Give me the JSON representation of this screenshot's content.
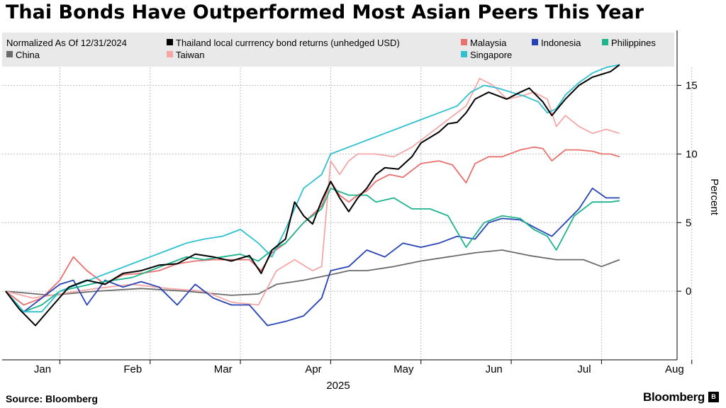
{
  "title": "Thai Bonds Have Outperformed Most Asian Peers This Year",
  "footer": {
    "source": "Source:  Bloomberg",
    "brand": "Bloomberg",
    "brand_mark": "B"
  },
  "chart_data": {
    "type": "line",
    "title": "Thai Bonds Have Outperformed Most Asian Peers This Year",
    "subtitle": "Normalized As Of 12/31/2024",
    "xlabel": "2025",
    "ylabel": "Percent",
    "x_tick_labels": [
      "Jan",
      "Feb",
      "Mar",
      "Apr",
      "May",
      "Jun",
      "Jul",
      "Aug"
    ],
    "y_ticks": [
      0,
      5,
      10,
      15
    ],
    "ylim": [
      -5,
      19
    ],
    "grid": true,
    "legend_position": "top",
    "x_unit": "months since 12/31/2024",
    "series": [
      {
        "name": "Thailand local currrency bond returns (unhedged USD)",
        "color": "#000000",
        "points": [
          [
            0,
            0
          ],
          [
            0.15,
            -1.3
          ],
          [
            0.33,
            -2.5
          ],
          [
            0.5,
            -1.2
          ],
          [
            0.7,
            0.3
          ],
          [
            0.9,
            0.8
          ],
          [
            1.1,
            0.5
          ],
          [
            1.3,
            1.3
          ],
          [
            1.5,
            1.5
          ],
          [
            1.7,
            1.9
          ],
          [
            1.9,
            2.0
          ],
          [
            2.1,
            2.7
          ],
          [
            2.3,
            2.5
          ],
          [
            2.5,
            2.2
          ],
          [
            2.7,
            2.6
          ],
          [
            2.83,
            1.3
          ],
          [
            2.95,
            3.0
          ],
          [
            3.1,
            3.8
          ],
          [
            3.2,
            6.5
          ],
          [
            3.3,
            5.5
          ],
          [
            3.4,
            4.9
          ],
          [
            3.5,
            6.6
          ],
          [
            3.6,
            8.0
          ],
          [
            3.7,
            6.8
          ],
          [
            3.8,
            5.8
          ],
          [
            3.9,
            6.8
          ],
          [
            4.0,
            7.5
          ],
          [
            4.1,
            8.5
          ],
          [
            4.2,
            9.0
          ],
          [
            4.35,
            8.9
          ],
          [
            4.5,
            9.8
          ],
          [
            4.6,
            10.8
          ],
          [
            4.8,
            11.6
          ],
          [
            4.9,
            12.2
          ],
          [
            5.0,
            12.3
          ],
          [
            5.1,
            13.0
          ],
          [
            5.2,
            14.0
          ],
          [
            5.35,
            14.5
          ],
          [
            5.55,
            14.0
          ],
          [
            5.7,
            14.5
          ],
          [
            5.8,
            14.8
          ],
          [
            5.95,
            13.8
          ],
          [
            6.05,
            12.8
          ],
          [
            6.2,
            14.0
          ],
          [
            6.35,
            15.0
          ],
          [
            6.5,
            15.6
          ],
          [
            6.6,
            15.8
          ],
          [
            6.7,
            16.0
          ],
          [
            6.8,
            16.5
          ]
        ]
      },
      {
        "name": "Malaysia",
        "color": "#e8706e",
        "points": [
          [
            0,
            0
          ],
          [
            0.2,
            -1.0
          ],
          [
            0.4,
            -0.5
          ],
          [
            0.6,
            0.8
          ],
          [
            0.75,
            2.5
          ],
          [
            0.9,
            1.5
          ],
          [
            1.1,
            0.5
          ],
          [
            1.3,
            1.2
          ],
          [
            1.5,
            1.3
          ],
          [
            1.7,
            1.5
          ],
          [
            1.9,
            2.0
          ],
          [
            2.1,
            2.2
          ],
          [
            2.3,
            2.3
          ],
          [
            2.5,
            2.3
          ],
          [
            2.7,
            2.3
          ],
          [
            2.83,
            1.5
          ],
          [
            2.95,
            2.8
          ],
          [
            3.1,
            3.5
          ],
          [
            3.3,
            5.0
          ],
          [
            3.5,
            6.2
          ],
          [
            3.6,
            8.0
          ],
          [
            3.7,
            7.0
          ],
          [
            3.8,
            6.5
          ],
          [
            3.9,
            7.0
          ],
          [
            4.0,
            7.3
          ],
          [
            4.1,
            8.0
          ],
          [
            4.25,
            8.5
          ],
          [
            4.4,
            8.3
          ],
          [
            4.6,
            9.3
          ],
          [
            4.8,
            9.5
          ],
          [
            4.95,
            9.2
          ],
          [
            5.1,
            7.9
          ],
          [
            5.2,
            9.3
          ],
          [
            5.35,
            9.8
          ],
          [
            5.5,
            9.8
          ],
          [
            5.7,
            10.3
          ],
          [
            5.85,
            10.5
          ],
          [
            5.95,
            10.4
          ],
          [
            6.05,
            9.5
          ],
          [
            6.2,
            10.3
          ],
          [
            6.35,
            10.3
          ],
          [
            6.5,
            10.2
          ],
          [
            6.6,
            10.0
          ],
          [
            6.7,
            10.0
          ],
          [
            6.8,
            9.8
          ]
        ]
      },
      {
        "name": "Indonesia",
        "color": "#2643b5",
        "points": [
          [
            0,
            0
          ],
          [
            0.2,
            -1.5
          ],
          [
            0.4,
            -0.5
          ],
          [
            0.6,
            0.5
          ],
          [
            0.75,
            0.8
          ],
          [
            0.9,
            -1.0
          ],
          [
            1.1,
            0.8
          ],
          [
            1.3,
            0.3
          ],
          [
            1.5,
            0.7
          ],
          [
            1.7,
            0.3
          ],
          [
            1.9,
            -1.0
          ],
          [
            2.1,
            0.5
          ],
          [
            2.3,
            -0.5
          ],
          [
            2.5,
            -1.0
          ],
          [
            2.7,
            -1.0
          ],
          [
            2.9,
            -2.5
          ],
          [
            3.1,
            -2.2
          ],
          [
            3.3,
            -1.8
          ],
          [
            3.5,
            -0.5
          ],
          [
            3.6,
            1.5
          ],
          [
            3.8,
            1.8
          ],
          [
            4.0,
            3.0
          ],
          [
            4.2,
            2.5
          ],
          [
            4.4,
            3.5
          ],
          [
            4.6,
            3.2
          ],
          [
            4.8,
            3.5
          ],
          [
            5.0,
            4.0
          ],
          [
            5.2,
            3.8
          ],
          [
            5.35,
            5.0
          ],
          [
            5.5,
            5.3
          ],
          [
            5.7,
            5.2
          ],
          [
            5.9,
            4.5
          ],
          [
            6.05,
            4.0
          ],
          [
            6.2,
            5.0
          ],
          [
            6.35,
            6.0
          ],
          [
            6.5,
            7.5
          ],
          [
            6.65,
            6.8
          ],
          [
            6.8,
            6.8
          ]
        ]
      },
      {
        "name": "Philippines",
        "color": "#1fb38e",
        "points": [
          [
            0,
            0
          ],
          [
            0.2,
            -1.5
          ],
          [
            0.4,
            -1.0
          ],
          [
            0.6,
            0.0
          ],
          [
            0.8,
            0.3
          ],
          [
            1.0,
            0.6
          ],
          [
            1.2,
            0.8
          ],
          [
            1.4,
            1.0
          ],
          [
            1.6,
            1.5
          ],
          [
            1.8,
            2.0
          ],
          [
            2.0,
            2.5
          ],
          [
            2.2,
            2.3
          ],
          [
            2.4,
            2.5
          ],
          [
            2.6,
            2.7
          ],
          [
            2.8,
            2.2
          ],
          [
            2.95,
            3.0
          ],
          [
            3.1,
            3.5
          ],
          [
            3.3,
            5.0
          ],
          [
            3.5,
            6.0
          ],
          [
            3.6,
            7.5
          ],
          [
            3.8,
            7.0
          ],
          [
            4.0,
            7.0
          ],
          [
            4.1,
            6.5
          ],
          [
            4.3,
            6.8
          ],
          [
            4.5,
            6.0
          ],
          [
            4.7,
            6.0
          ],
          [
            4.9,
            5.5
          ],
          [
            5.1,
            3.2
          ],
          [
            5.3,
            5.0
          ],
          [
            5.5,
            5.5
          ],
          [
            5.7,
            5.3
          ],
          [
            5.85,
            4.5
          ],
          [
            6.0,
            4.0
          ],
          [
            6.1,
            3.0
          ],
          [
            6.3,
            5.5
          ],
          [
            6.5,
            6.5
          ],
          [
            6.7,
            6.5
          ],
          [
            6.8,
            6.6
          ]
        ]
      },
      {
        "name": "China",
        "color": "#6b6b6b",
        "points": [
          [
            0,
            0
          ],
          [
            0.5,
            -0.3
          ],
          [
            1.0,
            0.0
          ],
          [
            1.5,
            0.2
          ],
          [
            2.0,
            0.0
          ],
          [
            2.5,
            -0.3
          ],
          [
            2.8,
            -0.2
          ],
          [
            3.0,
            0.5
          ],
          [
            3.3,
            0.8
          ],
          [
            3.6,
            1.2
          ],
          [
            3.8,
            1.5
          ],
          [
            4.0,
            1.5
          ],
          [
            4.3,
            1.8
          ],
          [
            4.6,
            2.2
          ],
          [
            4.9,
            2.5
          ],
          [
            5.2,
            2.8
          ],
          [
            5.5,
            3.0
          ],
          [
            5.8,
            2.6
          ],
          [
            6.1,
            2.3
          ],
          [
            6.4,
            2.3
          ],
          [
            6.6,
            1.8
          ],
          [
            6.8,
            2.3
          ]
        ]
      },
      {
        "name": "Taiwan",
        "color": "#f4a7a6",
        "points": [
          [
            0,
            0
          ],
          [
            0.3,
            -0.5
          ],
          [
            0.6,
            -0.2
          ],
          [
            1.0,
            0.2
          ],
          [
            1.4,
            0.5
          ],
          [
            1.8,
            0.2
          ],
          [
            2.2,
            0.0
          ],
          [
            2.5,
            -0.8
          ],
          [
            2.8,
            -1.0
          ],
          [
            3.0,
            1.5
          ],
          [
            3.2,
            2.3
          ],
          [
            3.4,
            1.5
          ],
          [
            3.5,
            1.8
          ],
          [
            3.6,
            9.5
          ],
          [
            3.7,
            8.5
          ],
          [
            3.8,
            9.5
          ],
          [
            3.9,
            10.0
          ],
          [
            4.1,
            10.0
          ],
          [
            4.3,
            9.8
          ],
          [
            4.5,
            10.5
          ],
          [
            4.7,
            11.5
          ],
          [
            4.9,
            12.5
          ],
          [
            5.1,
            13.5
          ],
          [
            5.25,
            15.5
          ],
          [
            5.4,
            15.0
          ],
          [
            5.55,
            14.0
          ],
          [
            5.7,
            14.2
          ],
          [
            5.85,
            14.5
          ],
          [
            6.0,
            14.0
          ],
          [
            6.1,
            12.0
          ],
          [
            6.2,
            12.8
          ],
          [
            6.35,
            12.0
          ],
          [
            6.5,
            11.5
          ],
          [
            6.65,
            11.8
          ],
          [
            6.8,
            11.5
          ]
        ]
      },
      {
        "name": "Singapore",
        "color": "#30c0cf",
        "points": [
          [
            0,
            0
          ],
          [
            0.2,
            -1.5
          ],
          [
            0.4,
            -1.5
          ],
          [
            0.6,
            0.0
          ],
          [
            0.8,
            0.5
          ],
          [
            1.0,
            1.0
          ],
          [
            1.2,
            1.5
          ],
          [
            1.4,
            2.0
          ],
          [
            1.6,
            2.5
          ],
          [
            1.8,
            3.0
          ],
          [
            2.0,
            3.5
          ],
          [
            2.2,
            3.8
          ],
          [
            2.4,
            4.0
          ],
          [
            2.6,
            4.5
          ],
          [
            2.8,
            3.5
          ],
          [
            2.95,
            2.5
          ],
          [
            3.1,
            4.5
          ],
          [
            3.3,
            7.5
          ],
          [
            3.5,
            8.5
          ],
          [
            3.6,
            10.0
          ],
          [
            3.8,
            10.5
          ],
          [
            4.0,
            11.0
          ],
          [
            4.2,
            11.5
          ],
          [
            4.4,
            12.0
          ],
          [
            4.6,
            12.5
          ],
          [
            4.8,
            13.0
          ],
          [
            5.0,
            13.5
          ],
          [
            5.15,
            14.5
          ],
          [
            5.3,
            15.0
          ],
          [
            5.45,
            14.8
          ],
          [
            5.6,
            14.5
          ],
          [
            5.75,
            14.2
          ],
          [
            5.9,
            13.8
          ],
          [
            6.0,
            13.0
          ],
          [
            6.1,
            13.3
          ],
          [
            6.2,
            14.3
          ],
          [
            6.35,
            15.2
          ],
          [
            6.5,
            15.9
          ],
          [
            6.65,
            16.3
          ],
          [
            6.8,
            16.5
          ]
        ]
      }
    ]
  }
}
